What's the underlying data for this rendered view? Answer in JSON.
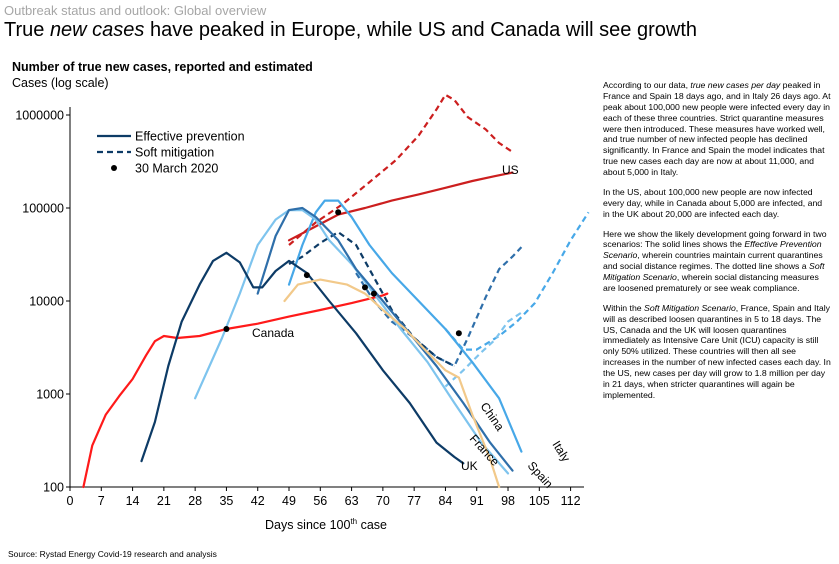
{
  "header": {
    "supertitle": "Outbreak status and outlook: Global overview",
    "title_pre": "True ",
    "title_em": "new cases",
    "title_post": " have peaked in Europe, while US and Canada will see growth"
  },
  "source": "Source: Rystad Energy Covid-19 research and analysis",
  "sidebar": [
    {
      "pre": "According to our data, ",
      "em": "true new cases per day",
      "post": " peaked in France and Spain 18 days ago, and in Italy 26 days ago. At peak about 100,000 new people were infected every day in each of these three countries. Strict quarantine measures were then introduced.  These measures have worked well, and true number of new infected people has declined significantly. In France and Spain the model indicates that true new cases each day are now at about 11,000, and about 5,000 in Italy."
    },
    {
      "pre": "In the US, about 100,000 new people are now infected every day, while in Canada about 5,000 are infected, and in the UK about 20,000 are infected each day.",
      "em": "",
      "post": ""
    },
    {
      "pre": "Here we show the likely development going forward in two scenarios: The solid lines shows the ",
      "em": "Effective Prevention Scenario",
      "post": ", wherein countries maintain current quarantines and social distance regimes. The dotted line shows a "
    },
    {
      "pre": "",
      "em": "Soft Mitigation Scenario",
      "post": ", wherein social distancing measures are loosened prematurely or see weak compliance."
    },
    {
      "pre": "Within the ",
      "em": "Soft Mitigation Scenario",
      "post": ", France, Spain and Italy will as described loosen quarantines in 5 to 18 days. The US, Canada and the UK will loosen quarantines immediately as Intensive Care Unit (ICU) capacity is still only 50% utilized.  These countries will then all see increases in the number of new infected cases each day. In the US, new cases per day will grow to 1.8 million per day in 21 days, when stricter quarantines will again be implemented."
    }
  ],
  "chart_data": {
    "type": "line",
    "title": "Number of true new cases, reported and estimated",
    "ylabel": "Cases (log scale)",
    "xlabel_main": "Days since 100",
    "xlabel_sup": "th",
    "xlabel_end": " case",
    "yscale": "log",
    "xlim": [
      0,
      115
    ],
    "ylim": [
      100,
      1000000
    ],
    "xticks": [
      0,
      7,
      14,
      21,
      28,
      35,
      42,
      49,
      56,
      63,
      70,
      77,
      84,
      91,
      98,
      105,
      112
    ],
    "yticks": [
      {
        "value": 100,
        "label": "100"
      },
      {
        "value": 1000,
        "label": "1000"
      },
      {
        "value": 10000,
        "label": "10000"
      },
      {
        "value": 100000,
        "label": "100000"
      },
      {
        "value": 1000000,
        "label": "1000000"
      }
    ],
    "legend": [
      {
        "label": "Effective prevention",
        "style": "solid"
      },
      {
        "label": "Soft mitigation",
        "style": "dashed"
      },
      {
        "label": "30 March 2020",
        "style": "dot"
      }
    ],
    "series": [
      {
        "name": "US",
        "color": "#cc1f1f",
        "width": 2.2,
        "label": "US",
        "solid": [
          [
            49,
            45000
          ],
          [
            54,
            60000
          ],
          [
            60,
            85000
          ],
          [
            66,
            100000
          ],
          [
            72,
            120000
          ],
          [
            78,
            140000
          ],
          [
            84,
            165000
          ],
          [
            90,
            195000
          ],
          [
            95,
            220000
          ],
          [
            99,
            240000
          ]
        ],
        "dashed": [
          [
            49,
            40000
          ],
          [
            55,
            70000
          ],
          [
            61,
            110000
          ],
          [
            67,
            190000
          ],
          [
            73,
            330000
          ],
          [
            78,
            600000
          ],
          [
            82,
            1150000
          ],
          [
            84,
            1650000
          ],
          [
            86,
            1450000
          ],
          [
            89,
            950000
          ],
          [
            93,
            700000
          ],
          [
            96,
            500000
          ],
          [
            99,
            400000
          ]
        ]
      },
      {
        "name": "Canada",
        "color": "#ff1a1a",
        "width": 2.2,
        "label": "Canada",
        "solid": [
          [
            3,
            100
          ],
          [
            5,
            280
          ],
          [
            8,
            600
          ],
          [
            11,
            950
          ],
          [
            14,
            1450
          ],
          [
            17,
            2600
          ],
          [
            19,
            3700
          ],
          [
            21,
            4200
          ],
          [
            24,
            4000
          ],
          [
            29,
            4200
          ],
          [
            35,
            5000
          ],
          [
            42,
            5700
          ],
          [
            49,
            6800
          ],
          [
            56,
            8000
          ],
          [
            63,
            9500
          ],
          [
            70,
            11500
          ],
          [
            71,
            12000
          ]
        ],
        "dashed": [
          [
            70,
            11500
          ],
          [
            71,
            12000
          ]
        ]
      },
      {
        "name": "Italy",
        "color": "#47a8e8",
        "width": 2.2,
        "label": "Italy",
        "solid": [
          [
            49,
            15000
          ],
          [
            52,
            40000
          ],
          [
            55,
            90000
          ],
          [
            57,
            120000
          ],
          [
            60,
            120000
          ],
          [
            63,
            80000
          ],
          [
            67,
            40000
          ],
          [
            72,
            20000
          ],
          [
            78,
            10000
          ],
          [
            84,
            5000
          ],
          [
            90,
            2200
          ],
          [
            96,
            900
          ],
          [
            101,
            240
          ]
        ],
        "dashed": [
          [
            84,
            5000
          ],
          [
            88,
            3000
          ],
          [
            91,
            3000
          ],
          [
            96,
            4200
          ],
          [
            100,
            6000
          ],
          [
            104,
            9500
          ],
          [
            108,
            20000
          ],
          [
            112,
            45000
          ],
          [
            116,
            90000
          ]
        ]
      },
      {
        "name": "France",
        "color": "#7ec4ee",
        "width": 2.2,
        "label": "France",
        "solid": [
          [
            28,
            900
          ],
          [
            34,
            4000
          ],
          [
            38,
            12000
          ],
          [
            42,
            40000
          ],
          [
            46,
            75000
          ],
          [
            49,
            95000
          ],
          [
            52,
            95000
          ],
          [
            55,
            75000
          ],
          [
            58,
            45000
          ],
          [
            63,
            25000
          ],
          [
            68,
            12000
          ],
          [
            74,
            5000
          ],
          [
            80,
            2200
          ],
          [
            86,
            800
          ],
          [
            92,
            300
          ],
          [
            98,
            140
          ]
        ],
        "dashed": [
          [
            84,
            1200
          ],
          [
            88,
            1800
          ],
          [
            92,
            2800
          ],
          [
            95,
            3800
          ],
          [
            98,
            6000
          ],
          [
            101,
            7500
          ]
        ]
      },
      {
        "name": "Spain",
        "color": "#2f6faa",
        "width": 2.2,
        "label": "Spain",
        "solid": [
          [
            42,
            12000
          ],
          [
            46,
            50000
          ],
          [
            49,
            95000
          ],
          [
            52,
            100000
          ],
          [
            55,
            80000
          ],
          [
            60,
            45000
          ],
          [
            64,
            22000
          ],
          [
            70,
            10000
          ],
          [
            76,
            4500
          ],
          [
            82,
            2000
          ],
          [
            88,
            800
          ],
          [
            94,
            300
          ],
          [
            99,
            150
          ]
        ],
        "dashed": [
          [
            64,
            20000
          ],
          [
            68,
            10000
          ],
          [
            72,
            6000
          ],
          [
            77,
            4000
          ],
          [
            82,
            2500
          ],
          [
            86,
            2000
          ],
          [
            89,
            4000
          ],
          [
            93,
            11000
          ],
          [
            96,
            22000
          ],
          [
            99,
            30000
          ],
          [
            101,
            38000
          ]
        ]
      },
      {
        "name": "UK",
        "color": "#0d3b66",
        "width": 2.2,
        "label": "UK",
        "solid": [
          [
            16,
            190
          ],
          [
            19,
            500
          ],
          [
            22,
            2000
          ],
          [
            25,
            6000
          ],
          [
            29,
            15000
          ],
          [
            32,
            27000
          ],
          [
            35,
            33000
          ],
          [
            38,
            26000
          ],
          [
            41,
            14000
          ],
          [
            43,
            14000
          ],
          [
            46,
            21000
          ],
          [
            49,
            27000
          ],
          [
            53,
            20000
          ],
          [
            58,
            10000
          ],
          [
            64,
            4500
          ],
          [
            70,
            1800
          ],
          [
            76,
            800
          ],
          [
            82,
            300
          ],
          [
            86,
            210
          ],
          [
            88,
            180
          ]
        ],
        "dashed": [
          [
            49,
            25000
          ],
          [
            52,
            30000
          ],
          [
            56,
            42000
          ],
          [
            60,
            55000
          ],
          [
            64,
            40000
          ],
          [
            68,
            18000
          ],
          [
            72,
            8000
          ],
          [
            77,
            4000
          ],
          [
            82,
            2500
          ],
          [
            86,
            2000
          ]
        ]
      },
      {
        "name": "China",
        "color": "#f2c98a",
        "width": 2.2,
        "label": "China",
        "solid": [
          [
            48,
            10000
          ],
          [
            51,
            15000
          ],
          [
            56,
            17000
          ],
          [
            62,
            15000
          ],
          [
            66,
            12000
          ],
          [
            70,
            8000
          ],
          [
            75,
            5000
          ],
          [
            80,
            2800
          ],
          [
            84,
            1800
          ],
          [
            87,
            1500
          ],
          [
            90,
            600
          ],
          [
            94,
            200
          ],
          [
            96,
            100
          ]
        ],
        "dashed": []
      }
    ],
    "markers": [
      [
        35,
        5000
      ],
      [
        53,
        19000
      ],
      [
        60,
        90000
      ],
      [
        66,
        14000
      ],
      [
        68,
        12000
      ],
      [
        87,
        4500
      ]
    ],
    "series_label_texts": {
      "US": "US",
      "Canada": "Canada",
      "China": "China",
      "France": "France",
      "UK": "UK",
      "Spain": "Spain",
      "Italy": "Italy"
    }
  }
}
